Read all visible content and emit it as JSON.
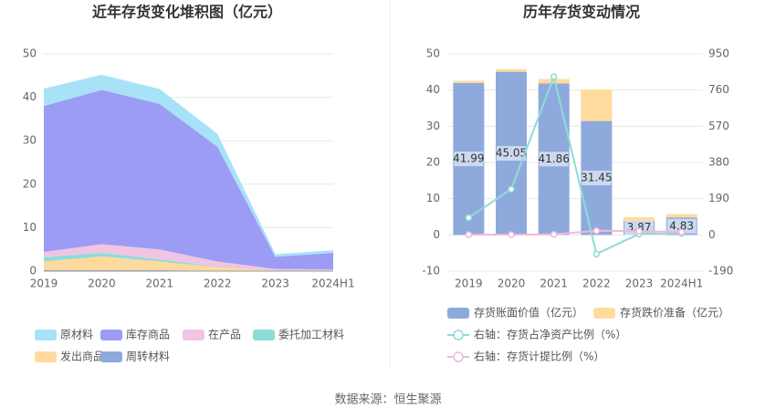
{
  "chart_data": [
    {
      "type": "area",
      "title": "近年存货变化堆积图（亿元）",
      "categories": [
        "2019",
        "2020",
        "2021",
        "2022",
        "2023",
        "2024H1"
      ],
      "ylim": [
        0,
        50
      ],
      "yticks": [
        0,
        10,
        20,
        30,
        40,
        50
      ],
      "grid": true,
      "stacked": true,
      "series": [
        {
          "name": "原材料",
          "color": "#a8e2f8",
          "values": [
            4.0,
            3.5,
            3.4,
            3.0,
            0.6,
            0.6
          ]
        },
        {
          "name": "库存商品",
          "color": "#9c9cf4",
          "values": [
            33.6,
            35.5,
            33.5,
            26.4,
            2.8,
            3.8
          ]
        },
        {
          "name": "在产品",
          "color": "#f0c4e2",
          "values": [
            1.2,
            2.0,
            2.3,
            1.2,
            0.3,
            0.2
          ]
        },
        {
          "name": "委托加工材料",
          "color": "#8edcd8",
          "values": [
            1.0,
            0.8,
            0.5,
            0.1,
            0.05,
            0.05
          ]
        },
        {
          "name": "发出商品",
          "color": "#ffda9e",
          "values": [
            2.0,
            3.2,
            2.0,
            0.8,
            0.1,
            0.1
          ]
        },
        {
          "name": "周转材料",
          "color": "#8eaadc",
          "values": [
            0.2,
            0.2,
            0.2,
            0.1,
            0.05,
            0.05
          ]
        }
      ]
    },
    {
      "type": "bar_line",
      "title": "历年存货变动情况",
      "categories": [
        "2019",
        "2020",
        "2021",
        "2022",
        "2023",
        "2024H1"
      ],
      "ylim": [
        -10,
        50
      ],
      "yticks": [
        -10,
        0,
        10,
        20,
        30,
        40,
        50
      ],
      "y2lim": [
        -190,
        950
      ],
      "y2ticks": [
        -190,
        0,
        190,
        380,
        570,
        760,
        950
      ],
      "grid": true,
      "series": [
        {
          "name": "存货账面价值（亿元）",
          "color": "#8eaadc",
          "kind": "bar",
          "values": [
            41.99,
            45.05,
            41.86,
            31.45,
            3.87,
            4.83
          ],
          "value_labels": [
            "41.99",
            "45.05",
            "41.86",
            "31.45",
            "3.87",
            "4.83"
          ]
        },
        {
          "name": "存货跌价准备（亿元）",
          "color": "#ffdc9e",
          "kind": "bar",
          "values": [
            0.6,
            0.7,
            1.2,
            8.7,
            1.0,
            0.9
          ]
        },
        {
          "name": "右轴：存货占净资产比例（%）",
          "color": "#8edcd8",
          "kind": "line",
          "axis": "y2",
          "values": [
            90,
            240,
            830,
            -100,
            5,
            8
          ]
        },
        {
          "name": "右轴：存货计提比例（%）",
          "color": "#f0b8d8",
          "kind": "line",
          "axis": "y2",
          "values": [
            1.4,
            1.5,
            2.8,
            21.7,
            20,
            15
          ]
        }
      ]
    }
  ],
  "source": "数据来源：恒生聚源"
}
